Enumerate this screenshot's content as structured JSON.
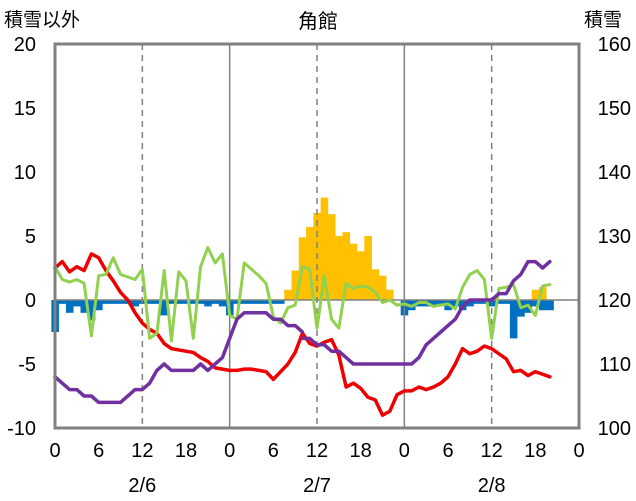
{
  "chart_data": {
    "type": "line",
    "title": "角館",
    "left_axis_title": "積雪以外",
    "right_axis_title": "積雪",
    "left_ylim": [
      -10,
      20
    ],
    "left_yticks": [
      "20",
      "15",
      "10",
      "5",
      "0",
      "-5",
      "-10"
    ],
    "right_ylim": [
      100,
      160
    ],
    "right_yticks": [
      "160",
      "150",
      "140",
      "130",
      "120",
      "110",
      "100"
    ],
    "xlim": [
      0,
      72
    ],
    "x_tick_labels": [
      "0",
      "6",
      "12",
      "18",
      "0",
      "6",
      "12",
      "18",
      "0",
      "6",
      "12",
      "18",
      "0"
    ],
    "date_labels": [
      "2/6",
      "2/7",
      "2/8"
    ],
    "grid": "dashed vertical lines at hours 12 of each day; solid dividers at day boundaries",
    "colors": {
      "red": "#ee0000",
      "green": "#92d050",
      "purple": "#7030a0",
      "blue_bar": "#0070c0",
      "orange_bar": "#ffc000",
      "frame": "#808080",
      "grid": "#808080"
    },
    "series": [
      {
        "color_key": "red",
        "axis": "left",
        "values": [
          2.5,
          3.0,
          2.2,
          2.6,
          2.3,
          3.6,
          3.3,
          2.3,
          1.5,
          0.6,
          0.0,
          -1.0,
          -1.8,
          -2.3,
          -2.6,
          -3.4,
          -3.8,
          -3.9,
          -4.0,
          -4.1,
          -4.5,
          -4.8,
          -5.3,
          -5.4,
          -5.5,
          -5.5,
          -5.4,
          -5.4,
          -5.5,
          -5.6,
          -6.2,
          -5.6,
          -5.0,
          -4.1,
          -2.6,
          -3.4,
          -3.6,
          -3.3,
          -3.1,
          -4.3,
          -6.8,
          -6.5,
          -6.9,
          -7.6,
          -7.8,
          -9.0,
          -8.7,
          -7.4,
          -7.1,
          -7.1,
          -6.8,
          -7.0,
          -6.8,
          -6.5,
          -6.0,
          -5.0,
          -3.8,
          -4.2,
          -4.0,
          -3.6,
          -3.8,
          -4.2,
          -4.6,
          -5.6,
          -5.5,
          -5.9,
          -5.6,
          -5.8,
          -6.0
        ]
      },
      {
        "color_key": "green",
        "axis": "left",
        "values": [
          2.6,
          1.6,
          1.4,
          1.6,
          1.3,
          -2.8,
          1.9,
          2.0,
          3.3,
          2.0,
          1.8,
          1.6,
          2.4,
          -3.0,
          -2.6,
          2.3,
          -3.2,
          2.2,
          1.5,
          -3.0,
          2.6,
          4.1,
          2.9,
          3.6,
          -1.2,
          -1.5,
          2.9,
          2.4,
          1.9,
          1.3,
          -1.3,
          -1.8,
          -0.6,
          -0.4,
          2.6,
          2.4,
          -2.2,
          1.9,
          -1.5,
          -2.2,
          1.3,
          0.9,
          1.1,
          1.0,
          0.6,
          -0.2,
          0.0,
          -0.4,
          -0.3,
          -0.5,
          -0.2,
          -0.2,
          -0.5,
          -0.4,
          -0.3,
          -0.7,
          1.0,
          2.0,
          2.3,
          1.6,
          -3.0,
          0.9,
          1.0,
          1.2,
          -0.6,
          -0.4,
          -1.2,
          1.1,
          1.2
        ]
      },
      {
        "color_key": "purple",
        "axis": "right",
        "values": [
          108,
          107,
          106,
          106,
          105,
          105,
          104,
          104,
          104,
          104,
          105,
          106,
          106,
          107,
          109,
          110,
          109,
          109,
          109,
          109,
          110,
          109,
          110,
          111,
          114,
          117,
          118,
          118,
          118,
          118,
          117,
          117,
          116,
          116,
          115,
          null,
          null,
          null,
          null,
          null,
          null,
          null,
          null,
          null,
          null,
          null,
          null,
          null,
          null,
          null,
          null,
          null,
          null,
          null,
          null,
          null,
          null,
          null,
          null,
          null,
          null,
          null,
          null,
          null,
          null,
          null,
          null,
          null,
          null
        ]
      },
      {
        "color_key": "purple",
        "axis": "right",
        "values": [
          null,
          null,
          null,
          null,
          null,
          null,
          null,
          null,
          null,
          null,
          null,
          null,
          null,
          null,
          null,
          null,
          null,
          null,
          null,
          null,
          null,
          null,
          null,
          null,
          null,
          null,
          null,
          null,
          null,
          null,
          null,
          null,
          null,
          null,
          114,
          114,
          113,
          113,
          112,
          112,
          111,
          110,
          110,
          110,
          110,
          110,
          110,
          110,
          110,
          110,
          111,
          113,
          114,
          115,
          116,
          117,
          119,
          120,
          120,
          120,
          120,
          121,
          121,
          123,
          124,
          126,
          126,
          125,
          126
        ]
      }
    ],
    "bars": [
      {
        "color_key": "orange_bar",
        "axis": "left",
        "values": [
          0,
          0,
          0,
          0,
          0,
          0,
          0,
          0,
          0,
          0,
          0,
          0,
          0,
          0,
          0,
          0,
          0,
          0,
          0,
          0,
          0,
          0,
          0,
          0,
          0,
          0,
          0,
          0,
          0,
          0,
          0,
          0,
          0.8,
          2.3,
          4.9,
          5.7,
          6.8,
          8.0,
          6.7,
          5.0,
          5.3,
          4.4,
          3.8,
          5.0,
          2.4,
          1.9,
          0.8,
          0,
          0,
          0,
          0,
          0,
          0,
          0,
          0,
          0,
          0,
          0,
          0,
          0,
          0,
          0,
          0,
          0,
          0,
          0,
          0.8,
          1.0,
          0
        ]
      },
      {
        "color_key": "blue_bar",
        "axis": "left",
        "values": [
          -2.5,
          -0.3,
          -1.0,
          -0.5,
          -1.0,
          -1.6,
          -0.8,
          -0.3,
          -0.3,
          -0.3,
          -0.3,
          -0.5,
          -0.3,
          -0.3,
          -0.3,
          -1.2,
          -0.3,
          -0.3,
          -0.3,
          -0.3,
          -0.3,
          -0.5,
          -0.3,
          -0.5,
          -1.2,
          -0.3,
          -0.3,
          -0.3,
          -0.3,
          -0.3,
          -0.3,
          -0.3,
          0,
          0,
          0,
          0,
          0,
          0,
          0,
          0,
          0,
          0,
          0,
          0,
          0,
          0,
          0,
          0,
          -1.2,
          -0.8,
          -0.5,
          -0.5,
          -0.5,
          -0.3,
          -0.8,
          -0.5,
          -0.8,
          -0.5,
          -0.3,
          -0.3,
          -0.5,
          -0.3,
          -0.3,
          -3.0,
          -1.3,
          -1.0,
          -0.5,
          -0.8,
          -0.8
        ]
      }
    ]
  }
}
